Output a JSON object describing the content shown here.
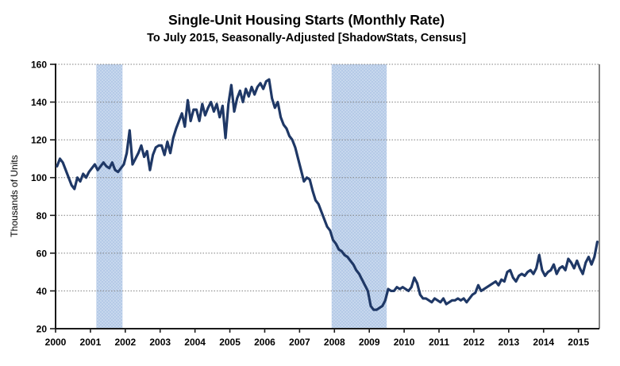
{
  "chart": {
    "title": "Single-Unit Housing Starts (Monthly Rate)",
    "subtitle": "To July 2015, Seasonally-Adjusted [ShadowStats, Census]",
    "ylabel": "Thousands of Units"
  },
  "chart_data": {
    "type": "line",
    "title": "Single-Unit Housing Starts (Monthly Rate)",
    "subtitle": "To July 2015, Seasonally-Adjusted [ShadowStats, Census]",
    "xlabel": "",
    "ylabel": "Thousands of Units",
    "x_unit": "monthly, Jan 2000 to Jul 2015",
    "x_start_year": 2000,
    "points_per_month": 1,
    "xlim": [
      2000,
      2015.6
    ],
    "ylim": [
      20,
      160
    ],
    "y_ticks": [
      20,
      40,
      60,
      80,
      100,
      120,
      140,
      160
    ],
    "x_tick_years": [
      2000,
      2001,
      2002,
      2003,
      2004,
      2005,
      2006,
      2007,
      2008,
      2009,
      2010,
      2011,
      2012,
      2013,
      2014,
      2015
    ],
    "grid": "horizontal-dotted",
    "legend": "none",
    "line_color": "#1F3866",
    "band_color": "#B5CAE7",
    "recession_bands": [
      {
        "start": 2001.17,
        "end": 2001.92
      },
      {
        "start": 2007.92,
        "end": 2009.5
      }
    ],
    "series": [
      {
        "name": "Single-unit housing starts (thousands of units, monthly rate)",
        "values": [
          106,
          110,
          108,
          104,
          100,
          96,
          94,
          100,
          98,
          102,
          100,
          103,
          105,
          107,
          104,
          106,
          108,
          106,
          105,
          108,
          104,
          103,
          105,
          107,
          113,
          125,
          107,
          110,
          113,
          117,
          111,
          114,
          104,
          112,
          116,
          117,
          117,
          112,
          119,
          113,
          121,
          126,
          130,
          134,
          127,
          141,
          130,
          136,
          136,
          130,
          139,
          133,
          137,
          140,
          135,
          139,
          132,
          138,
          121,
          139,
          149,
          135,
          142,
          146,
          140,
          147,
          143,
          148,
          144,
          148,
          150,
          147,
          151,
          152,
          142,
          137,
          140,
          132,
          128,
          126,
          122,
          120,
          116,
          110,
          104,
          98,
          100,
          99,
          93,
          88,
          86,
          82,
          78,
          74,
          72,
          67,
          65,
          62,
          61,
          59,
          58,
          56,
          54,
          51,
          49,
          46,
          43,
          40,
          32,
          30,
          30,
          31,
          32,
          35,
          41,
          40,
          40,
          42,
          41,
          42,
          41,
          40,
          42,
          47,
          44,
          38,
          36,
          36,
          35,
          34,
          36,
          35,
          34,
          36,
          33,
          34,
          35,
          35,
          36,
          35,
          36,
          34,
          36,
          38,
          39,
          43,
          40,
          41,
          42,
          43,
          44,
          45,
          43,
          46,
          45,
          50,
          51,
          47,
          45,
          48,
          49,
          48,
          50,
          51,
          49,
          52,
          59,
          51,
          48,
          50,
          51,
          54,
          49,
          52,
          53,
          51,
          57,
          55,
          52,
          56,
          52,
          49,
          55,
          58,
          54,
          58,
          66
        ]
      }
    ]
  }
}
